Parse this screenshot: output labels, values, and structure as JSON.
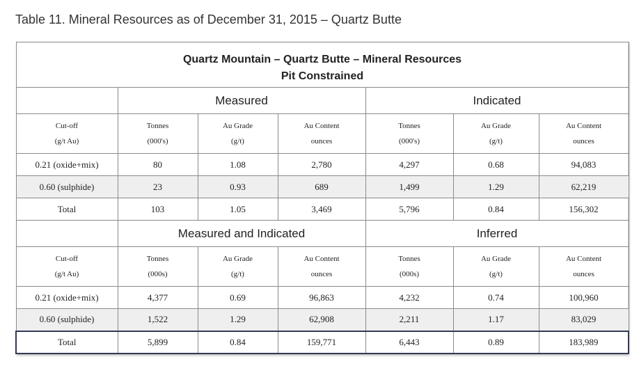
{
  "caption": "Table 11. Mineral Resources as of December 31, 2015 – Quartz Butte",
  "table": {
    "title_line1": "Quartz Mountain – Quartz Butte – Mineral Resources",
    "title_line2": "Pit Constrained",
    "section1": {
      "group_left": "Measured",
      "group_right": "Indicated",
      "headers": [
        [
          "Cut-off",
          "(g/t Au)"
        ],
        [
          "Tonnes",
          "(000's)"
        ],
        [
          "Au Grade",
          "(g/t)"
        ],
        [
          "Au Content",
          "ounces"
        ],
        [
          "Tonnes",
          "(000's)"
        ],
        [
          "Au Grade",
          "(g/t)"
        ],
        [
          "Au Content",
          "ounces"
        ]
      ],
      "rows": [
        [
          "0.21 (oxide+mix)",
          "80",
          "1.08",
          "2,780",
          "4,297",
          "0.68",
          "94,083"
        ],
        [
          "0.60 (sulphide)",
          "23",
          "0.93",
          "689",
          "1,499",
          "1.29",
          "62,219"
        ],
        [
          "Total",
          "103",
          "1.05",
          "3,469",
          "5,796",
          "0.84",
          "156,302"
        ]
      ]
    },
    "section2": {
      "group_left": "Measured and Indicated",
      "group_right": "Inferred",
      "headers": [
        [
          "Cut-off",
          "(g/t Au)"
        ],
        [
          "Tonnes",
          "(000s)"
        ],
        [
          "Au Grade",
          "(g/t)"
        ],
        [
          "Au Content",
          "ounces"
        ],
        [
          "Tonnes",
          "(000s)"
        ],
        [
          "Au Grade",
          "(g/t)"
        ],
        [
          "Au Content",
          "ounces"
        ]
      ],
      "rows": [
        [
          "0.21 (oxide+mix)",
          "4,377",
          "0.69",
          "96,863",
          "4,232",
          "0.74",
          "100,960"
        ],
        [
          "0.60 (sulphide)",
          "1,522",
          "1.29",
          "62,908",
          "2,211",
          "1.17",
          "83,029"
        ],
        [
          "Total",
          "5,899",
          "0.84",
          "159,771",
          "6,443",
          "0.89",
          "183,989"
        ]
      ]
    }
  }
}
